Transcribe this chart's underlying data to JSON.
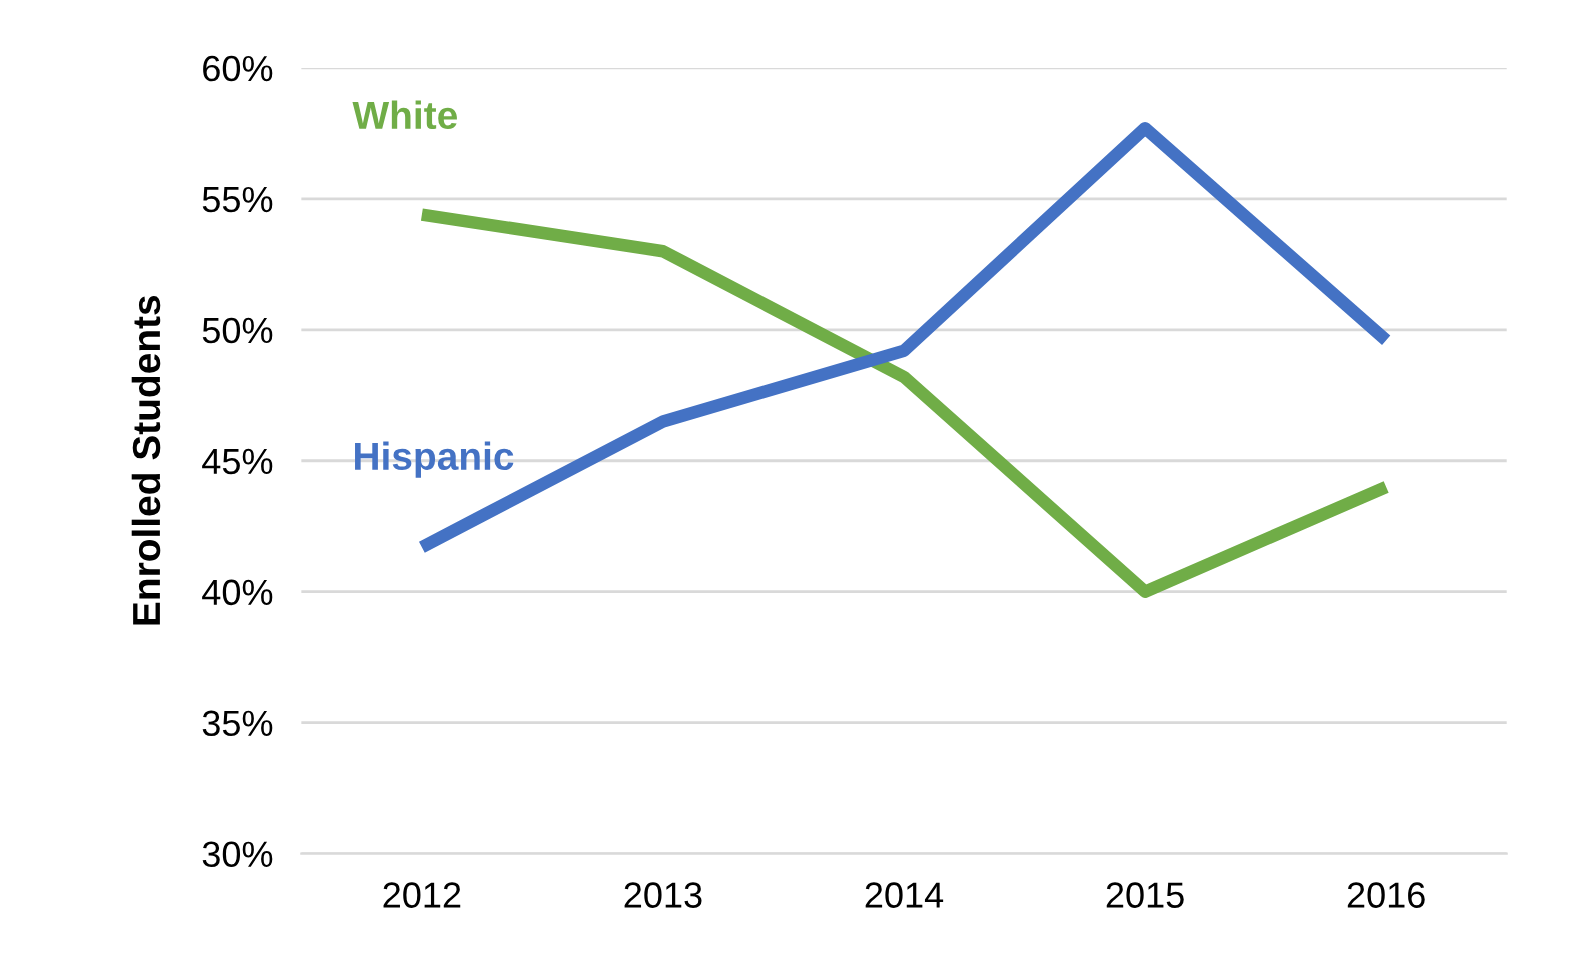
{
  "chart_data": {
    "type": "line",
    "ylabel": "Enrolled Students",
    "categories": [
      "2012",
      "2013",
      "2014",
      "2015",
      "2016"
    ],
    "series": [
      {
        "name": "White",
        "color": "#70ad47",
        "values": [
          54.4,
          53.0,
          48.2,
          40.0,
          44.0
        ]
      },
      {
        "name": "Hispanic",
        "color": "#4472c4",
        "values": [
          41.7,
          46.5,
          49.2,
          57.7,
          49.6
        ]
      }
    ],
    "ylim": [
      30,
      60
    ],
    "yticks": [
      {
        "value": 30,
        "label": "30%"
      },
      {
        "value": 35,
        "label": "35%"
      },
      {
        "value": 40,
        "label": "40%"
      },
      {
        "value": 45,
        "label": "45%"
      },
      {
        "value": 50,
        "label": "50%"
      },
      {
        "value": 55,
        "label": "55%"
      },
      {
        "value": 60,
        "label": "60%"
      }
    ],
    "grid": "y",
    "legend": false,
    "marker": "none",
    "line_style": "solid"
  }
}
